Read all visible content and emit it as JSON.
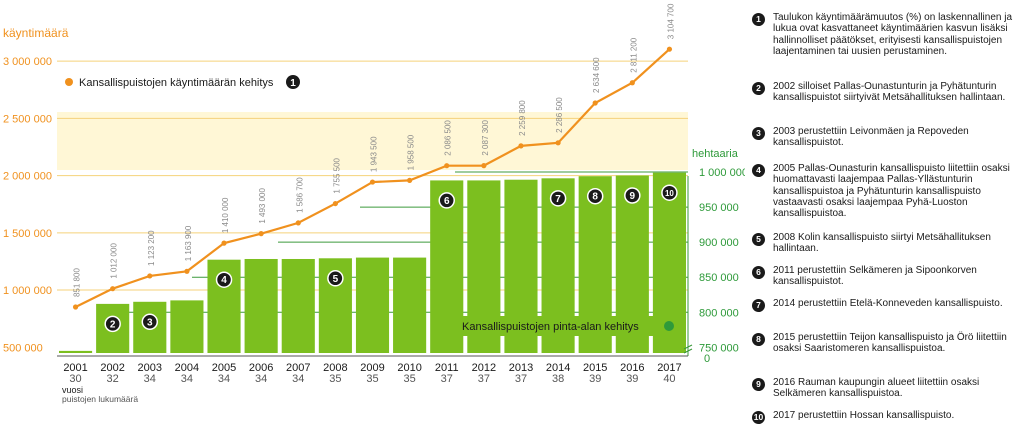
{
  "chart_data": {
    "type": "bar+line",
    "left_axis_title": "käyntimäärä",
    "right_axis_title": "hehtaaria",
    "x_axis_title": "vuosi",
    "x_axis_subtitle": "puistojen lukumäärä",
    "years": [
      "2001",
      "2002",
      "2003",
      "2004",
      "2005",
      "2006",
      "2007",
      "2008",
      "2009",
      "2010",
      "2011",
      "2012",
      "2013",
      "2014",
      "2015",
      "2016",
      "2017"
    ],
    "park_counts": [
      "30",
      "32",
      "34",
      "34",
      "34",
      "34",
      "34",
      "35",
      "35",
      "35",
      "37",
      "37",
      "37",
      "38",
      "39",
      "39",
      "40"
    ],
    "left_ticks": [
      "500 000",
      "1 000 000",
      "1 500 000",
      "2 000 000",
      "2 500 000",
      "3 000 000"
    ],
    "left_tick_values": [
      500000,
      1000000,
      1500000,
      2000000,
      2500000,
      3000000
    ],
    "left_ylim": [
      450000,
      3150000
    ],
    "right_ticks": [
      "1 000 000",
      "950 000",
      "900 000",
      "850 000",
      "800 000",
      "750 000",
      "0"
    ],
    "right_tick_values": [
      1000000,
      950000,
      900000,
      850000,
      800000,
      750000
    ],
    "right_ylim": [
      742000,
      1000000
    ],
    "visits": {
      "name": "Kansallispuistojen käyntimäärän kehitys",
      "color": "#f0911e",
      "legend_marker": "1",
      "values": [
        851800,
        1012000,
        1123200,
        1163900,
        1410000,
        1493000,
        1586700,
        1755500,
        1943500,
        1958500,
        2086500,
        2087300,
        2259800,
        2286500,
        2634600,
        2811200,
        3104700
      ],
      "labels": [
        "851 800",
        "1 012 000",
        "1 123 200",
        "1 163 900",
        "1 410 000",
        "1 493 000",
        "1 586 700",
        "1 755 500",
        "1 943 500",
        "1 958 500",
        "2 086 500",
        "2 087 300",
        "2 259 800",
        "2 286 500",
        "2 634 600",
        "2 811 200",
        "3 104 700"
      ]
    },
    "area": {
      "name": "Kansallispuistojen pinta-alan kehitys",
      "color": "#7cbf1f",
      "legend_color": "#2e9a3a",
      "values": [
        745000,
        812000,
        815000,
        817000,
        875000,
        876000,
        876000,
        877000,
        878000,
        878000,
        988000,
        988000,
        989000,
        991000,
        994000,
        995000,
        999000
      ]
    },
    "bar_markers": [
      {
        "year": "2002",
        "marker": "2"
      },
      {
        "year": "2003",
        "marker": "3"
      },
      {
        "year": "2005",
        "marker": "4"
      },
      {
        "year": "2008",
        "marker": "5"
      },
      {
        "year": "2011",
        "marker": "6"
      },
      {
        "year": "2014",
        "marker": "7"
      },
      {
        "year": "2015",
        "marker": "8"
      },
      {
        "year": "2016",
        "marker": "9"
      },
      {
        "year": "2017",
        "marker": "10"
      }
    ],
    "colors": {
      "grid_orange": "#f5d27a",
      "grid_green": "#3c9a3c",
      "left_axis_text": "#f0911e",
      "right_axis_text": "#2e9a3a",
      "value_label": "#8a8a8a",
      "marker": "#1a1a1a",
      "highlight": "#fff7d6"
    }
  },
  "notes": [
    {
      "number": "1",
      "text": "Taulukon käyntimäärämuutos (%) on laskennallinen ja lukua ovat kasvattaneet käyntimäärien kasvun lisäksi hallinnolliset päätökset, erityisesti kansallispuistojen laajentaminen tai uusien perustaminen."
    },
    {
      "number": "2",
      "text": "2002 silloiset Pallas-Ounastunturin ja Pyhätunturin kansallispuistot siirtyivät Metsähallituksen hallintaan."
    },
    {
      "number": "3",
      "text": "2003 perustettiin Leivonmäen ja Repoveden kansallispuistot."
    },
    {
      "number": "4",
      "text": "2005 Pallas-Ounasturin kansallispuisto liitettiin osaksi huomattavasti laajempaa Pallas-Yllästunturin kansallispuistoa ja Pyhätunturin kansallispuisto vastaavasti osaksi laajempaa Pyhä-Luoston kansallispuistoa."
    },
    {
      "number": "5",
      "text": "2008 Kolin kansallispuisto siirtyi Metsähallituksen hallintaan."
    },
    {
      "number": "6",
      "text": "2011 perustettiin Selkämeren ja Sipoonkorven kansallispuistot."
    },
    {
      "number": "7",
      "text": "2014 perustettiin Etelä-Konneveden kansallispuisto."
    },
    {
      "number": "8",
      "text": "2015 perustettiin Teijon kansallispuisto ja Örö liitettiin osaksi Saaristomeren kansallispuistoa."
    },
    {
      "number": "9",
      "text": "2016 Rauman kaupungin alueet liitettiin osaksi Selkämeren kansallispuistoa."
    },
    {
      "number": "10",
      "text": "2017 perustettiin Hossan kansallispuisto."
    }
  ]
}
